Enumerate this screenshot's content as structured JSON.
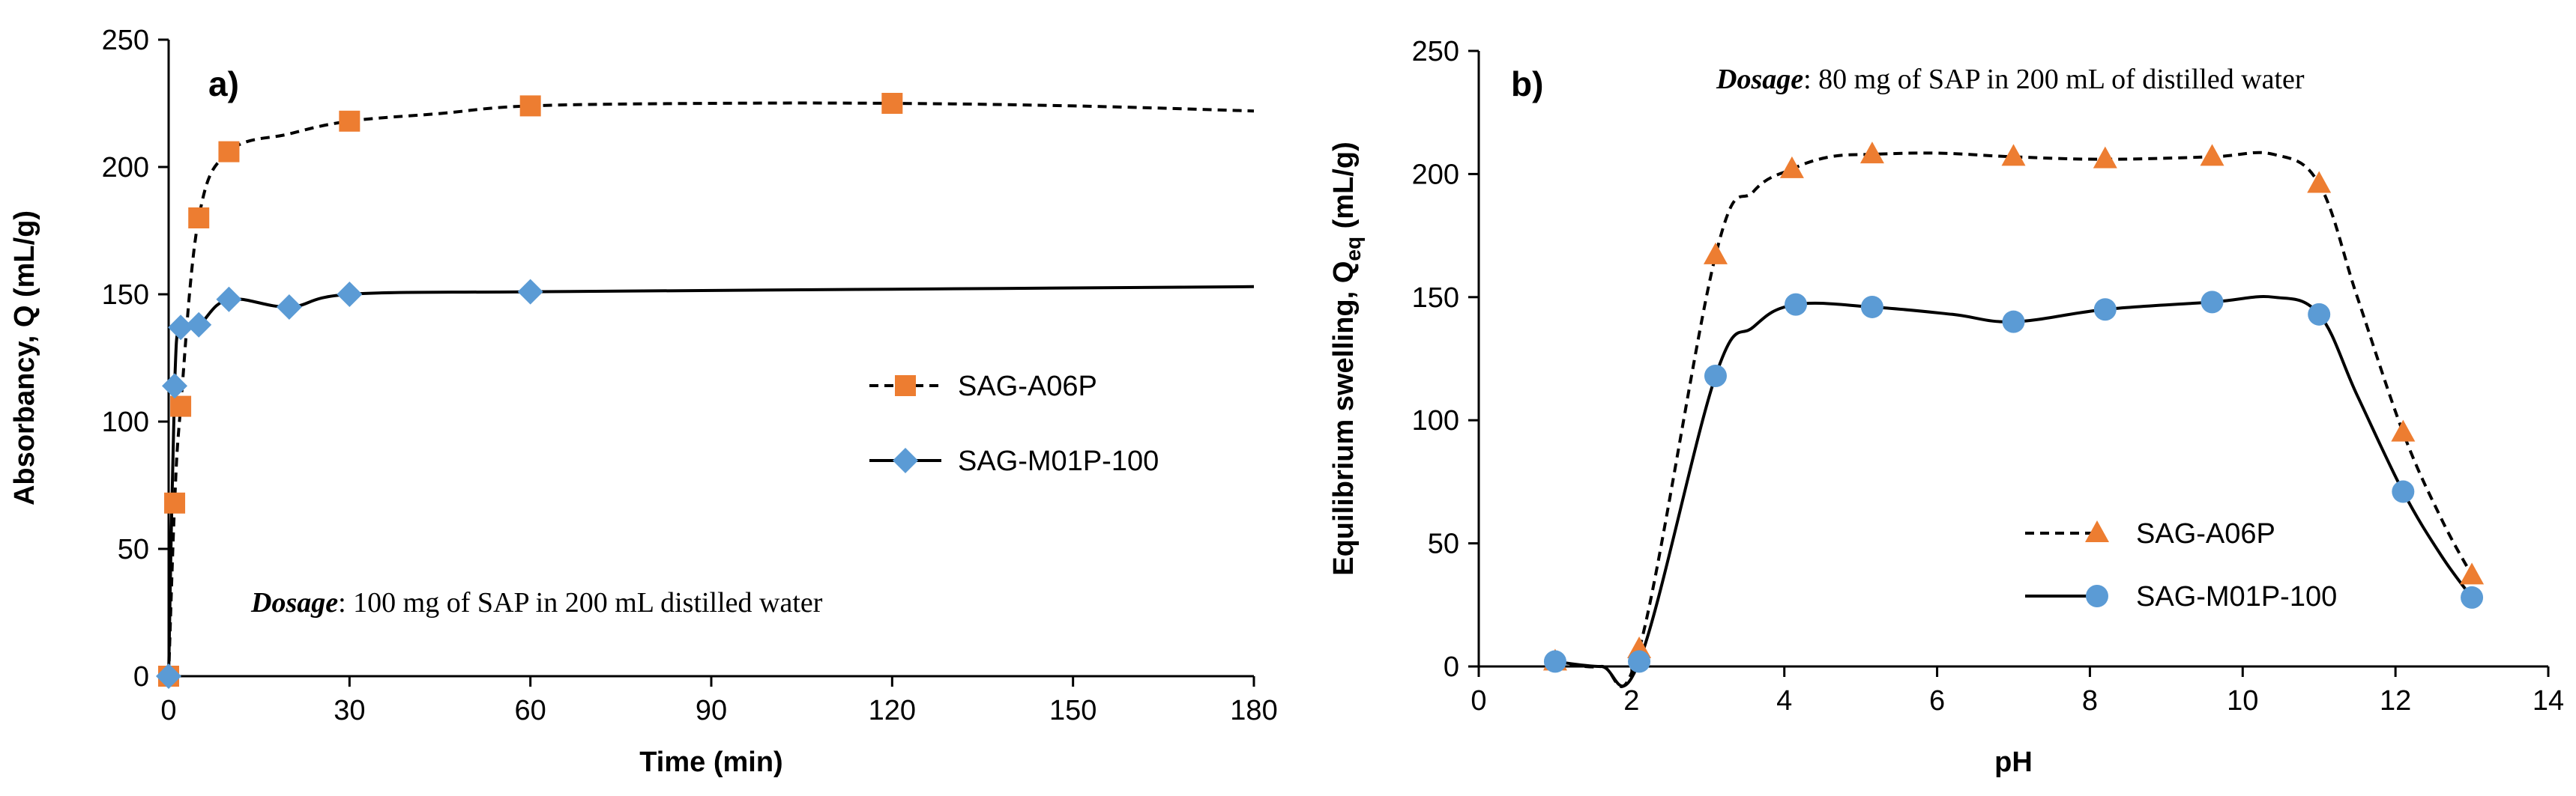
{
  "colors": {
    "orange": "#ED7D31",
    "blue": "#5B9BD5",
    "black": "#000000"
  },
  "chart_data": [
    {
      "type": "line",
      "panel_label": "a)",
      "xlabel": "Time (min)",
      "ylabel": "Absorbancy, Q (mL/g)",
      "xlim": [
        0,
        180
      ],
      "ylim": [
        0,
        250
      ],
      "xticks": [
        0,
        30,
        60,
        90,
        120,
        150,
        180
      ],
      "yticks": [
        0,
        50,
        100,
        150,
        200,
        250
      ],
      "xtick_labels": [
        "0",
        "30",
        "60",
        "90",
        "120",
        "150",
        "180"
      ],
      "ytick_labels": [
        "0",
        "50",
        "100",
        "150",
        "200",
        "250"
      ],
      "grid": false,
      "legend_position": "center-right",
      "annotation": {
        "emphasis": "Dosage",
        "text": ": 100 mg of SAP in 200 mL distilled water"
      },
      "series": [
        {
          "name": "SAG-A06P",
          "marker": "square",
          "line": "dashed",
          "color": "#ED7D31",
          "points": [
            [
              0,
              0
            ],
            [
              1,
              68
            ],
            [
              2,
              106
            ],
            [
              5,
              180
            ],
            [
              10,
              206
            ],
            [
              30,
              218
            ],
            [
              60,
              224
            ],
            [
              120,
              225
            ]
          ],
          "curve": [
            [
              0,
              0
            ],
            [
              1,
              68
            ],
            [
              2,
              106
            ],
            [
              5,
              180
            ],
            [
              10,
              206
            ],
            [
              20,
              213
            ],
            [
              30,
              218
            ],
            [
              45,
              221
            ],
            [
              60,
              224
            ],
            [
              90,
              225
            ],
            [
              120,
              225
            ],
            [
              150,
              224
            ],
            [
              180,
              222
            ]
          ]
        },
        {
          "name": "SAG-M01P-100",
          "marker": "diamond",
          "line": "solid",
          "color": "#5B9BD5",
          "points": [
            [
              0,
              0
            ],
            [
              1,
              114
            ],
            [
              2,
              137
            ],
            [
              5,
              138
            ],
            [
              10,
              148
            ],
            [
              20,
              145
            ],
            [
              30,
              150
            ],
            [
              60,
              151
            ]
          ],
          "curve": [
            [
              0,
              0
            ],
            [
              1,
              114
            ],
            [
              2,
              137
            ],
            [
              5,
              138
            ],
            [
              10,
              148
            ],
            [
              20,
              145
            ],
            [
              30,
              150
            ],
            [
              60,
              151
            ],
            [
              120,
              152
            ],
            [
              180,
              153
            ]
          ]
        }
      ]
    },
    {
      "type": "line",
      "panel_label": "b)",
      "xlabel": "pH",
      "ylabel_main": "Equilibrium swelling, Q",
      "ylabel_sub": "eq",
      "ylabel_unit": " (mL/g)",
      "xlim": [
        0,
        14
      ],
      "ylim": [
        0,
        250
      ],
      "xticks": [
        0,
        2,
        4,
        6,
        8,
        10,
        12,
        14
      ],
      "yticks": [
        0,
        50,
        100,
        150,
        200,
        250
      ],
      "xtick_labels": [
        "0",
        "2",
        "4",
        "6",
        "8",
        "10",
        "12",
        "14"
      ],
      "ytick_labels": [
        "0",
        "50",
        "100",
        "150",
        "200",
        "250"
      ],
      "grid": false,
      "legend_position": "lower-center",
      "annotation": {
        "emphasis": "Dosage",
        "text": ": 80 mg of SAP in 200 mL of distilled water"
      },
      "series": [
        {
          "name": "SAG-A06P",
          "marker": "triangle",
          "line": "dashed",
          "color": "#ED7D31",
          "points": [
            [
              1,
              2
            ],
            [
              2.1,
              7
            ],
            [
              3.1,
              167
            ],
            [
              4.1,
              202
            ],
            [
              5.15,
              208
            ],
            [
              7.0,
              207
            ],
            [
              8.2,
              206
            ],
            [
              9.6,
              207
            ],
            [
              11.0,
              196
            ],
            [
              12.1,
              95
            ],
            [
              13.0,
              37
            ]
          ],
          "curve": [
            [
              1,
              2
            ],
            [
              1.6,
              0
            ],
            [
              2.1,
              7
            ],
            [
              3.1,
              167
            ],
            [
              3.6,
              193
            ],
            [
              4.1,
              202
            ],
            [
              4.6,
              207
            ],
            [
              5.15,
              208
            ],
            [
              6.0,
              208.5
            ],
            [
              7.0,
              207
            ],
            [
              8.2,
              206
            ],
            [
              9.6,
              207
            ],
            [
              10.4,
              208
            ],
            [
              11.0,
              196
            ],
            [
              11.5,
              150
            ],
            [
              12.1,
              95
            ],
            [
              12.6,
              60
            ],
            [
              13.0,
              37
            ]
          ]
        },
        {
          "name": "SAG-M01P-100",
          "marker": "circle",
          "line": "solid",
          "color": "#5B9BD5",
          "points": [
            [
              1,
              2
            ],
            [
              2.1,
              2
            ],
            [
              3.1,
              118
            ],
            [
              4.15,
              147
            ],
            [
              5.15,
              146
            ],
            [
              7.0,
              140
            ],
            [
              8.2,
              145
            ],
            [
              9.6,
              148
            ],
            [
              11.0,
              143
            ],
            [
              12.1,
              71
            ],
            [
              13.0,
              28
            ]
          ],
          "curve": [
            [
              1,
              2
            ],
            [
              1.6,
              0
            ],
            [
              2.1,
              2
            ],
            [
              3.1,
              118
            ],
            [
              3.6,
              138
            ],
            [
              4.15,
              147
            ],
            [
              5.15,
              146
            ],
            [
              6.2,
              143
            ],
            [
              7.0,
              140
            ],
            [
              8.2,
              145
            ],
            [
              9.6,
              148
            ],
            [
              10.4,
              150
            ],
            [
              11.0,
              143
            ],
            [
              11.5,
              110
            ],
            [
              12.1,
              71
            ],
            [
              12.6,
              45
            ],
            [
              13.0,
              28
            ]
          ]
        }
      ]
    }
  ]
}
